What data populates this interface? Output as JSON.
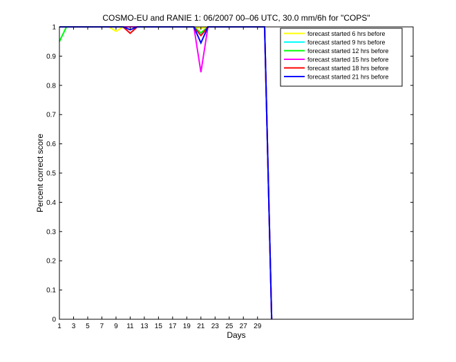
{
  "chart_data": {
    "type": "line",
    "title": "COSMO-EU and RANIE 1: 06/2007 00–06 UTC, 30.0 mm/6h for \"COPS\"",
    "xlabel": "Days",
    "ylabel": "Percent correct score",
    "xlim": [
      1,
      51
    ],
    "ylim": [
      0,
      1
    ],
    "x_ticks": [
      1,
      3,
      5,
      7,
      9,
      11,
      13,
      15,
      17,
      19,
      21,
      23,
      25,
      27,
      29
    ],
    "y_ticks": [
      0,
      0.1,
      0.2,
      0.3,
      0.4,
      0.5,
      0.6,
      0.7,
      0.8,
      0.9,
      1
    ],
    "y_tick_labels": [
      "0",
      "0.1",
      "0.2",
      "0.3",
      "0.4",
      "0.5",
      "0.6",
      "0.7",
      "0.8",
      "0.9",
      "1"
    ],
    "grid": false,
    "legend_position": "top-right",
    "x": [
      1,
      2,
      3,
      4,
      5,
      6,
      7,
      8,
      9,
      10,
      11,
      12,
      13,
      14,
      15,
      16,
      17,
      18,
      19,
      20,
      21,
      22,
      23,
      24,
      25,
      26,
      27,
      28,
      29,
      30,
      31
    ],
    "series": [
      {
        "name": "forecast started 6 hrs before",
        "color": "#ffff00",
        "values": [
          1,
          1,
          1,
          1,
          1,
          1,
          1,
          1,
          0.985,
          1,
          1,
          1,
          1,
          1,
          1,
          1,
          1,
          1,
          1,
          1,
          0.995,
          1,
          1,
          1,
          1,
          1,
          1,
          1,
          1,
          1,
          0
        ]
      },
      {
        "name": "forecast started 9 hrs before",
        "color": "#00ffff",
        "values": [
          0.95,
          1,
          1,
          1,
          1,
          1,
          1,
          1,
          1,
          1,
          1,
          1,
          1,
          1,
          1,
          1,
          1,
          1,
          1,
          1,
          0.975,
          1,
          1,
          1,
          1,
          1,
          1,
          1,
          1,
          1,
          0
        ]
      },
      {
        "name": "forecast started 12 hrs before",
        "color": "#00ff00",
        "values": [
          0.95,
          1,
          1,
          1,
          1,
          1,
          1,
          1,
          1,
          1,
          1,
          1,
          1,
          1,
          1,
          1,
          1,
          1,
          1,
          1,
          0.98,
          1,
          1,
          1,
          1,
          1,
          1,
          1,
          1,
          1,
          0
        ]
      },
      {
        "name": "forecast started 15 hrs before",
        "color": "#ff00ff",
        "values": [
          1,
          1,
          1,
          1,
          1,
          1,
          1,
          1,
          1,
          1,
          1,
          1,
          1,
          1,
          1,
          1,
          1,
          1,
          1,
          1,
          0.845,
          1,
          1,
          1,
          1,
          1,
          1,
          1,
          1,
          1,
          0
        ]
      },
      {
        "name": "forecast started 18 hrs before",
        "color": "#ff0000",
        "values": [
          1,
          1,
          1,
          1,
          1,
          1,
          1,
          1,
          1,
          1,
          0.978,
          1,
          1,
          1,
          1,
          1,
          1,
          1,
          1,
          1,
          0.97,
          1,
          1,
          1,
          1,
          1,
          1,
          1,
          1,
          1,
          0
        ]
      },
      {
        "name": "forecast started 21 hrs before",
        "color": "#0000ff",
        "values": [
          1,
          1,
          1,
          1,
          1,
          1,
          1,
          1,
          1,
          1,
          0.99,
          1,
          1,
          1,
          1,
          1,
          1,
          1,
          1,
          1,
          0.945,
          1,
          1,
          1,
          1,
          1,
          1,
          1,
          1,
          1,
          0
        ]
      }
    ]
  }
}
